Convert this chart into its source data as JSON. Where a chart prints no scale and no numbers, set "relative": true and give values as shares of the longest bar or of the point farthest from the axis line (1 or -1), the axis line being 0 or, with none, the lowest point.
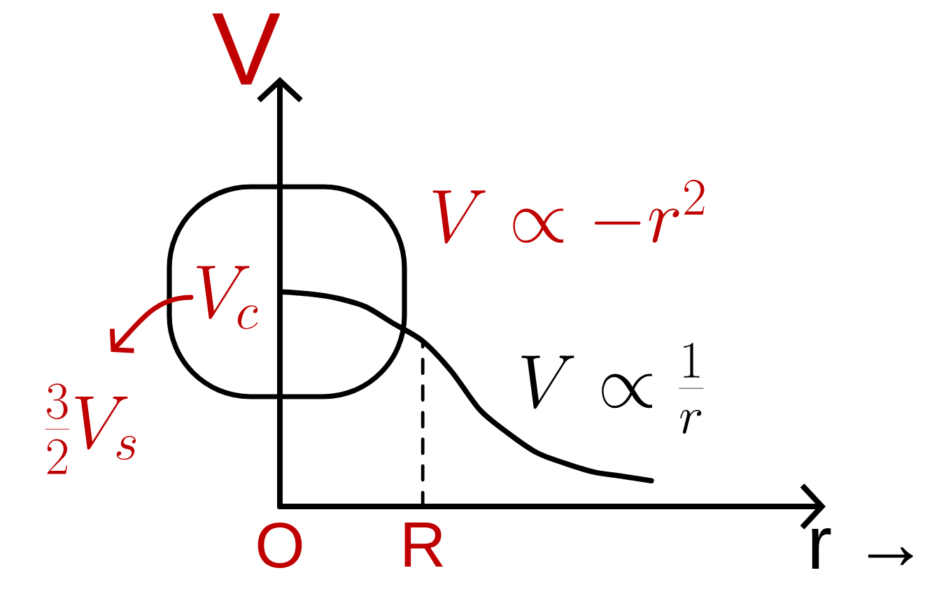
{
  "chart_data": {
    "type": "line",
    "relative": true,
    "xlabel": "r →",
    "ylabel": "V",
    "categories": [
      "O",
      null,
      null,
      null,
      null,
      "R",
      null,
      null,
      null,
      null,
      null,
      null,
      null,
      null,
      null,
      null,
      null,
      null,
      null,
      null
    ],
    "series": [
      {
        "color": "#000000",
        "values": [
          1,
          0.99,
          0.97,
          0.93,
          0.85,
          0.77,
          0.63,
          0.45,
          0.34,
          0.25,
          0.2,
          0.16,
          0.14,
          0.12,
          null,
          null,
          null,
          null,
          null,
          null
        ]
      },
      {
        "type": "line",
        "x": [
          "R",
          "R"
        ],
        "values": [
          0,
          0.77
        ],
        "line_style": "dashed",
        "color": "#000000"
      }
    ],
    "annotations": [
      "V_{c}",
      "\\frac{3}{2}V_{s}",
      "V\\propto -r^{2}",
      "V\\propto\\frac{1}{r}"
    ],
    "marker": "none",
    "line_style": "solid"
  }
}
